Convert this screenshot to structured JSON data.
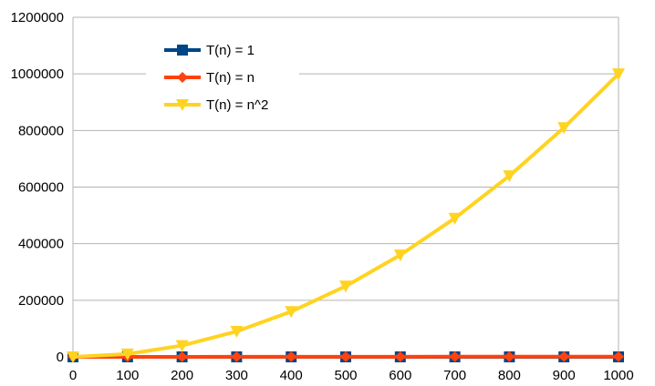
{
  "chart_data": {
    "type": "line",
    "x": [
      0,
      100,
      200,
      300,
      400,
      500,
      600,
      700,
      800,
      900,
      1000
    ],
    "series": [
      {
        "name": "T(n) = 1",
        "color": "#004586",
        "marker": "square",
        "values": [
          1,
          1,
          1,
          1,
          1,
          1,
          1,
          1,
          1,
          1,
          1
        ]
      },
      {
        "name": "T(n) = n",
        "color": "#ff420e",
        "marker": "diamond",
        "values": [
          0,
          100,
          200,
          300,
          400,
          500,
          600,
          700,
          800,
          900,
          1000
        ]
      },
      {
        "name": "T(n) = n^2",
        "color": "#ffd320",
        "marker": "triangle-down",
        "values": [
          0,
          10000,
          40000,
          90000,
          160000,
          250000,
          360000,
          490000,
          640000,
          810000,
          1000000
        ]
      }
    ],
    "xticks": [
      "0",
      "100",
      "200",
      "300",
      "400",
      "500",
      "600",
      "700",
      "800",
      "900",
      "1000"
    ],
    "yticks": [
      "0",
      "200000",
      "400000",
      "600000",
      "800000",
      "1000000",
      "1200000"
    ],
    "xlim": [
      0,
      1000
    ],
    "ylim": [
      0,
      1200000
    ],
    "grid": true,
    "legend_position": "top-left"
  }
}
